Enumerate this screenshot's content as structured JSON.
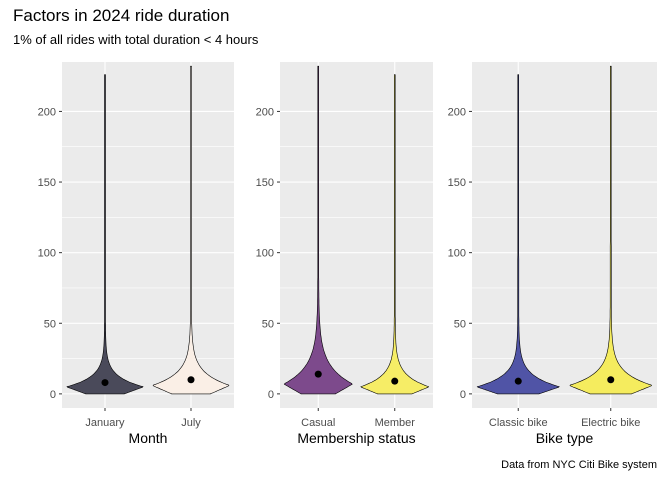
{
  "title": "Factors in 2024 ride duration",
  "subtitle": "1% of all rides with total duration < 4 hours",
  "caption": "Data from NYC Citi Bike system",
  "chart_data": [
    {
      "type": "violin",
      "xlabel": "Month",
      "ylim": [
        -10,
        235
      ],
      "yticks": [
        0,
        50,
        100,
        150,
        200
      ],
      "categories": [
        "January",
        "July"
      ],
      "fills": [
        "#4a4a5a",
        "#faefe6"
      ],
      "medians": [
        8,
        10
      ],
      "maxima": [
        226,
        232
      ],
      "modes": [
        5,
        6
      ]
    },
    {
      "type": "violin",
      "xlabel": "Membership status",
      "ylim": [
        -10,
        235
      ],
      "yticks": [
        0,
        50,
        100,
        150,
        200
      ],
      "categories": [
        "Casual",
        "Member"
      ],
      "fills": [
        "#7d4a8c",
        "#f6ed66"
      ],
      "medians": [
        14,
        9
      ],
      "maxima": [
        232,
        226
      ],
      "modes": [
        7,
        5
      ]
    },
    {
      "type": "violin",
      "xlabel": "Bike type",
      "ylim": [
        -10,
        235
      ],
      "yticks": [
        0,
        50,
        100,
        150,
        200
      ],
      "categories": [
        "Classic bike",
        "Electric bike"
      ],
      "fills": [
        "#5054a6",
        "#f5ec5e"
      ],
      "medians": [
        9,
        10
      ],
      "maxima": [
        226,
        232
      ],
      "modes": [
        5,
        6
      ]
    }
  ]
}
